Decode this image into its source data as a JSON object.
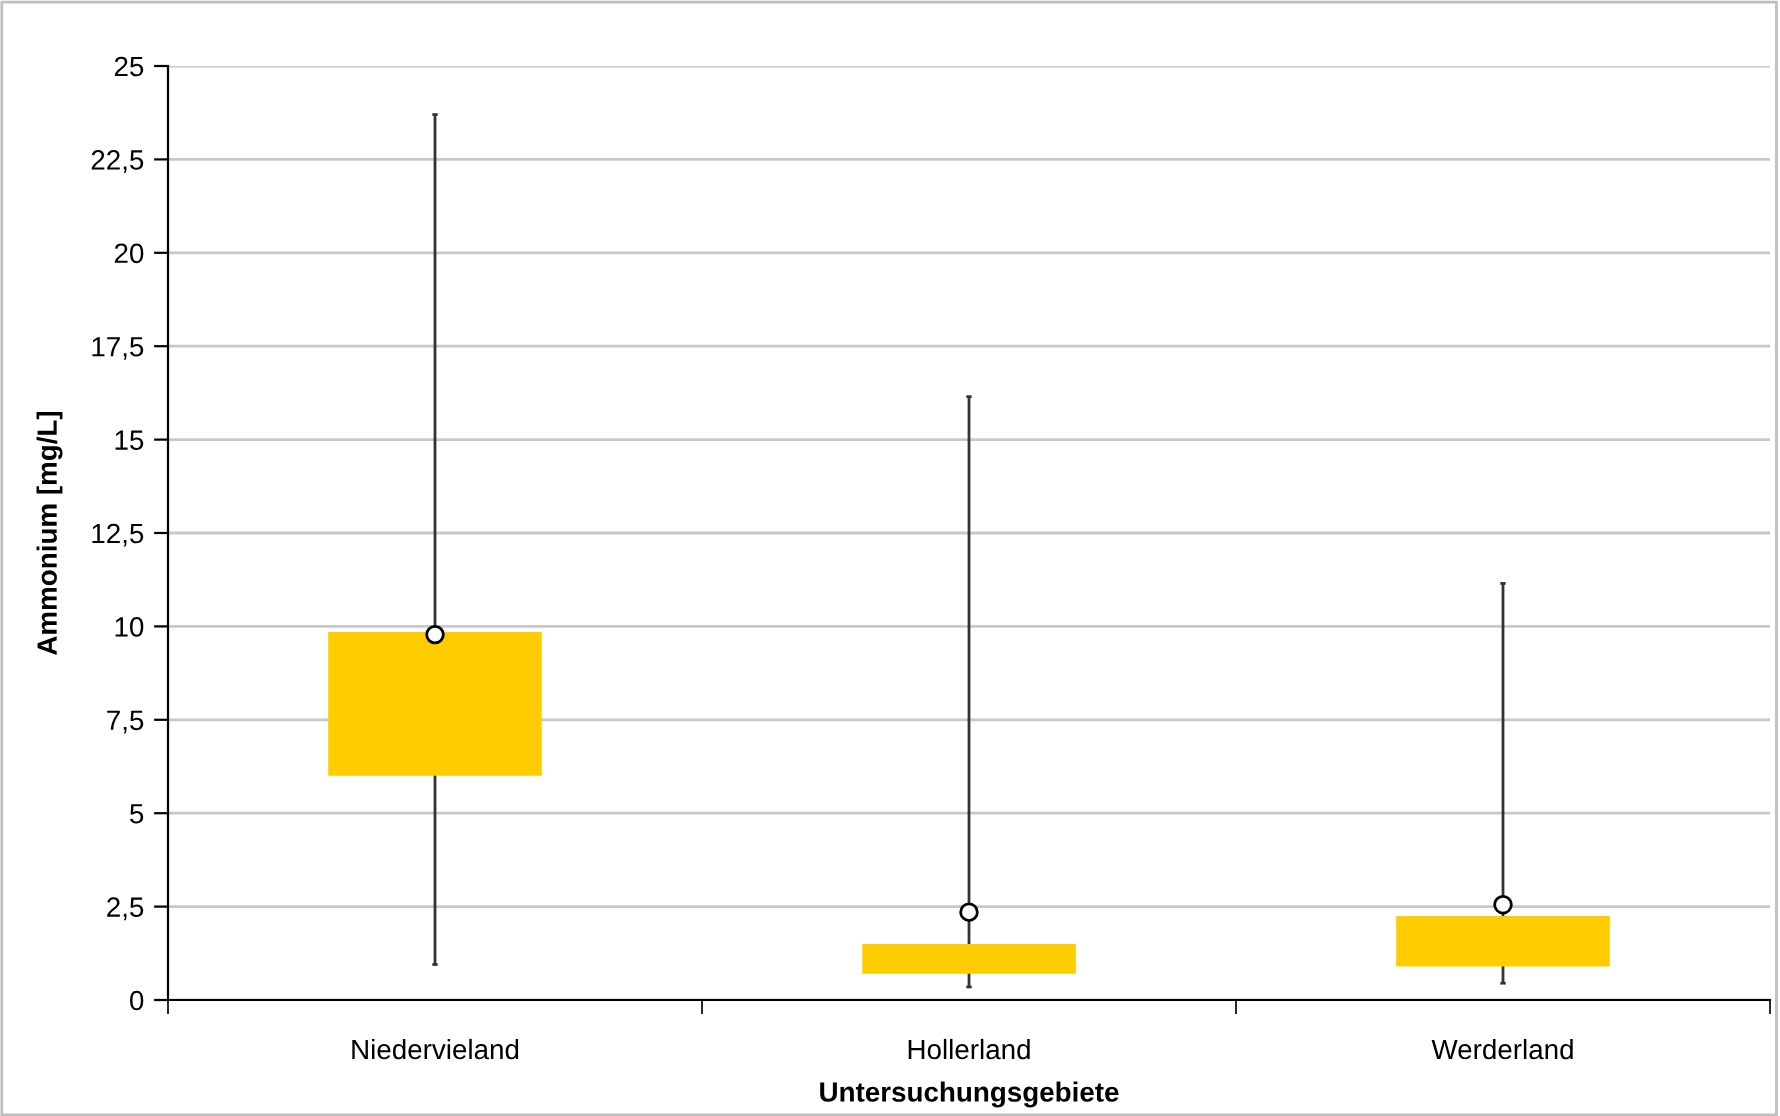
{
  "chart_data": {
    "type": "box",
    "xlabel": "Untersuchungsgebiete",
    "ylabel": "Ammonium [mg/L]",
    "categories": [
      "Niedervieland",
      "Hollerland",
      "Werderland"
    ],
    "boxes": [
      {
        "low": 0.95,
        "q1": 6.0,
        "q3": 9.85,
        "high": 23.7,
        "mean": 9.78
      },
      {
        "low": 0.35,
        "q1": 0.7,
        "q3": 1.5,
        "high": 16.15,
        "mean": 2.35
      },
      {
        "low": 0.45,
        "q1": 0.9,
        "q3": 2.25,
        "high": 11.15,
        "mean": 2.55
      }
    ],
    "color": "#ffcc00",
    "ylim": [
      0,
      25
    ],
    "yticks": [
      0,
      {
        "value": 2.5,
        "label": "2,5"
      },
      5,
      {
        "value": 7.5,
        "label": "7,5"
      },
      10,
      {
        "value": 12.5,
        "label": "12,5"
      },
      15,
      {
        "value": 17.5,
        "label": "17,5"
      },
      20,
      {
        "value": 22.5,
        "label": "22,5"
      },
      25
    ],
    "grid": "y",
    "legend": false
  }
}
